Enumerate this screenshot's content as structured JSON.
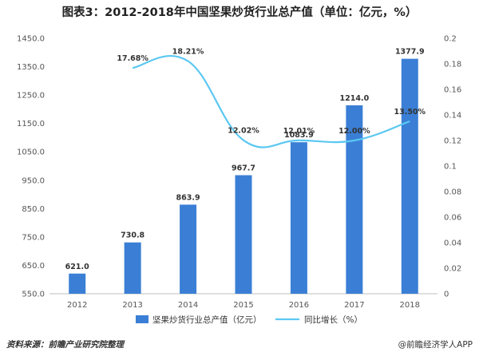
{
  "title": "图表3：2012-2018年中国坚果炒货行业总产值（单位：亿元，%）",
  "source": "资料来源：前瞻产业研究院整理",
  "credit": "@前瞻经济学人APP",
  "colors": {
    "bar": "#3a7fd5",
    "line": "#5bc8f2",
    "grid": "#d8d8d8"
  },
  "chart_data": {
    "type": "bar",
    "categories": [
      "2012",
      "2013",
      "2014",
      "2015",
      "2016",
      "2017",
      "2018"
    ],
    "series": [
      {
        "name": "坚果炒货行业总产值（亿元）",
        "type": "bar",
        "axis": "left",
        "values": [
          621.0,
          730.8,
          863.9,
          967.7,
          1083.9,
          1214.0,
          1377.9
        ],
        "labels": [
          "621.0",
          "730.8",
          "863.9",
          "967.7",
          "1083.9",
          "1214.0",
          "1377.9"
        ]
      },
      {
        "name": "同比增长（%）",
        "type": "line",
        "axis": "right",
        "values": [
          null,
          0.1768,
          0.1821,
          0.1202,
          0.1201,
          0.12,
          0.135
        ],
        "labels": [
          "",
          "17.68%",
          "18.21%",
          "12.02%",
          "12.01%",
          "12.00%",
          "13.50%"
        ]
      }
    ],
    "y_left": {
      "min": 550,
      "max": 1450,
      "step": 100,
      "ticks": [
        "550.0",
        "650.0",
        "750.0",
        "850.0",
        "950.0",
        "1050.0",
        "1150.0",
        "1250.0",
        "1350.0",
        "1450.0"
      ]
    },
    "y_right": {
      "min": 0,
      "max": 0.2,
      "step": 0.02,
      "ticks": [
        "0",
        "0.02",
        "0.04",
        "0.06",
        "0.08",
        "0.1",
        "0.12",
        "0.14",
        "0.16",
        "0.18",
        "0.2"
      ]
    },
    "grid": false,
    "legend": "bottom"
  }
}
